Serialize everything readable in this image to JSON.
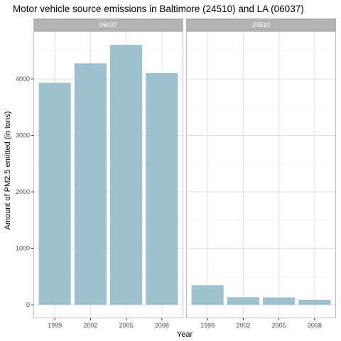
{
  "chart_data": {
    "type": "bar",
    "title": "Motor vehicle source emissions in Baltimore (24510) and LA (06037)",
    "xlabel": "Year",
    "ylabel": "Amount of PM2.5 emitted (in tons)",
    "categories": [
      "1999",
      "2002",
      "2005",
      "2008"
    ],
    "ylim": [
      0,
      4800
    ],
    "yticks": [
      0,
      1000,
      2000,
      3000,
      4000
    ],
    "grid": true,
    "facets": [
      {
        "label": "06037",
        "values": [
          3931,
          4274,
          4601,
          4101
        ]
      },
      {
        "label": "24510",
        "values": [
          347,
          134,
          130,
          89
        ]
      }
    ],
    "colors": {
      "bar": "#9dc1cf",
      "strip": "#b3b3b3",
      "grid": "#e0e0e0",
      "panel_border": "#bdbdbd",
      "tick": "#4d4d4d"
    }
  }
}
